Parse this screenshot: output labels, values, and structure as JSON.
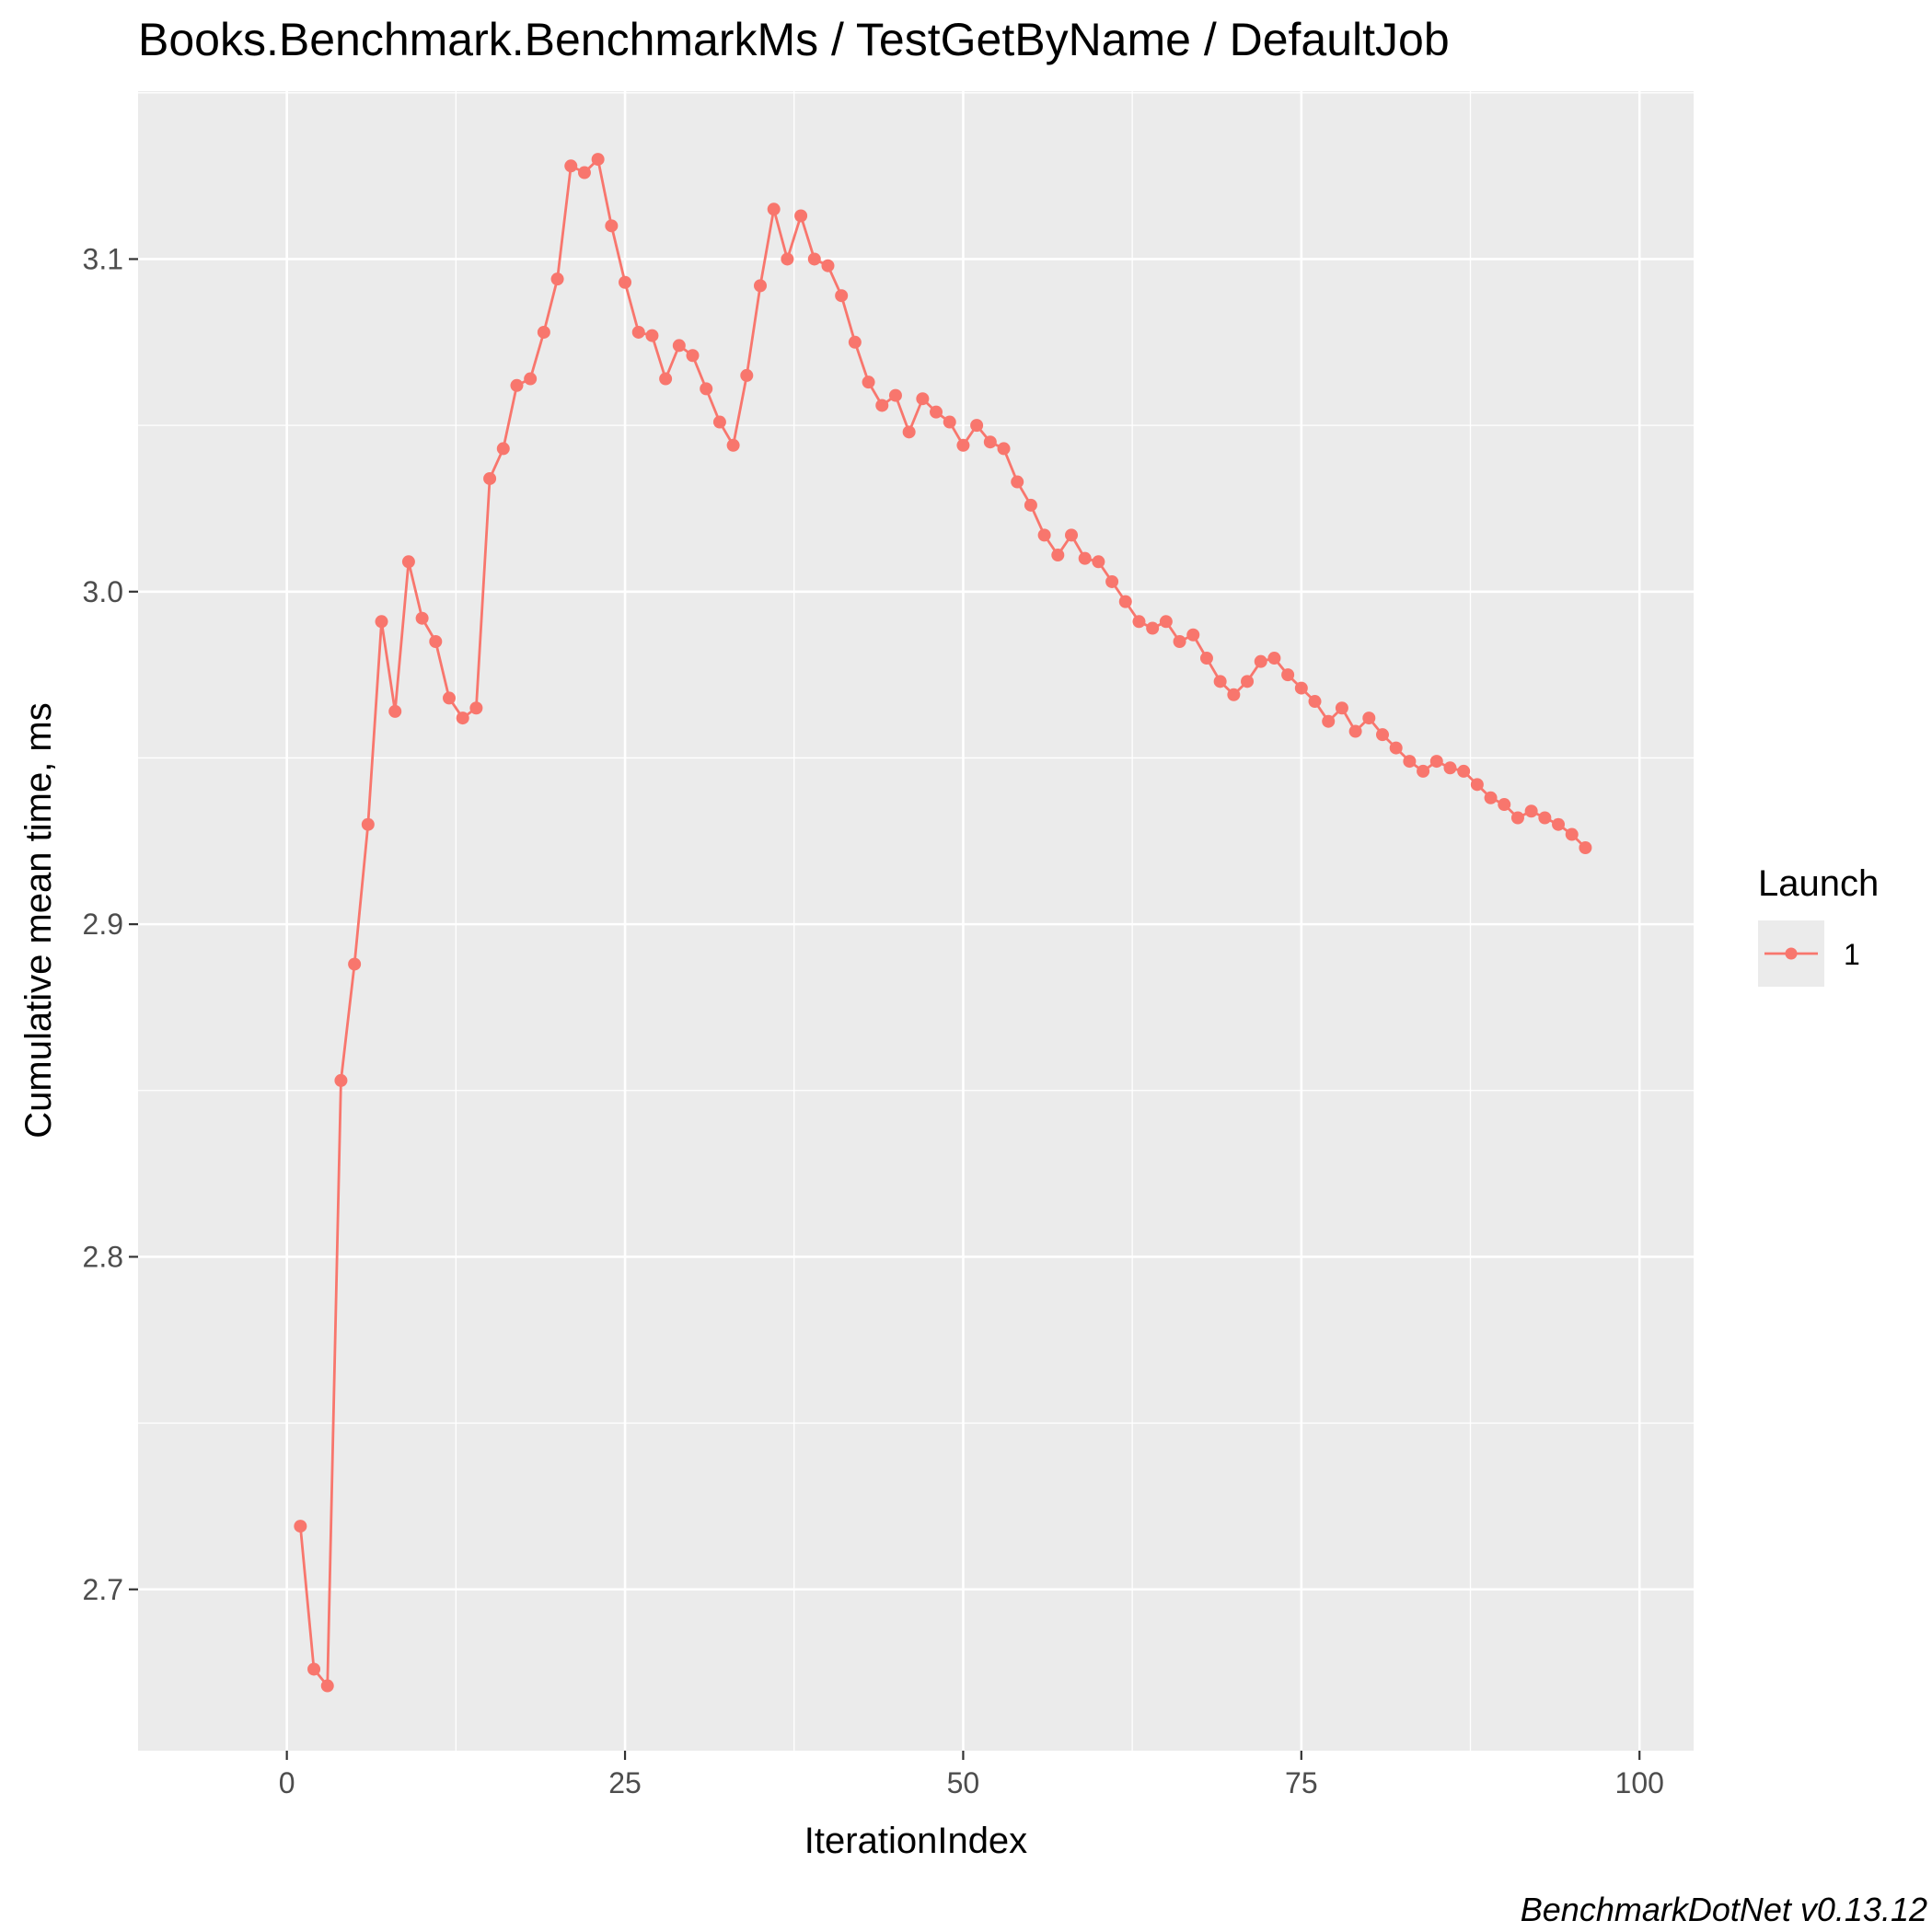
{
  "chart_data": {
    "type": "line",
    "title": "Books.Benchmark.BenchmarkMs / TestGetByName / DefaultJob",
    "xlabel": "IterationIndex",
    "ylabel": "Cumulative mean time, ms",
    "caption": "BenchmarkDotNet v0.13.12",
    "xlim": [
      -11,
      104
    ],
    "ylim": [
      2.6515,
      3.1505
    ],
    "x_ticks": [
      0,
      25,
      50,
      75,
      100
    ],
    "x_tick_labels": [
      "0",
      "25",
      "50",
      "75",
      "100"
    ],
    "y_ticks": [
      2.7,
      2.8,
      2.9,
      3.0,
      3.1
    ],
    "y_tick_labels": [
      "2.7",
      "2.8",
      "2.9",
      "3.0",
      "3.1"
    ],
    "grid": true,
    "legend": {
      "title": "Launch",
      "position": "right",
      "entries": [
        "1"
      ]
    },
    "series": [
      {
        "name": "1",
        "color": "#F8766D",
        "x": [
          1,
          2,
          3,
          4,
          5,
          6,
          7,
          8,
          9,
          10,
          11,
          12,
          13,
          14,
          15,
          16,
          17,
          18,
          19,
          20,
          21,
          22,
          23,
          24,
          25,
          26,
          27,
          28,
          29,
          30,
          31,
          32,
          33,
          34,
          35,
          36,
          37,
          38,
          39,
          40,
          41,
          42,
          43,
          44,
          45,
          46,
          47,
          48,
          49,
          50,
          51,
          52,
          53,
          54,
          55,
          56,
          57,
          58,
          59,
          60,
          61,
          62,
          63,
          64,
          65,
          66,
          67,
          68,
          69,
          70,
          71,
          72,
          73,
          74,
          75,
          76,
          77,
          78,
          79,
          80,
          81,
          82,
          83,
          84,
          85,
          86,
          87,
          88,
          89,
          90,
          91,
          92,
          93,
          94,
          95,
          96
        ],
        "values": [
          2.719,
          2.676,
          2.671,
          2.853,
          2.888,
          2.93,
          2.991,
          2.964,
          3.009,
          2.992,
          2.985,
          2.968,
          2.962,
          2.965,
          3.034,
          3.043,
          3.062,
          3.064,
          3.078,
          3.094,
          3.128,
          3.126,
          3.13,
          3.11,
          3.093,
          3.078,
          3.077,
          3.064,
          3.074,
          3.071,
          3.061,
          3.051,
          3.044,
          3.065,
          3.092,
          3.115,
          3.1,
          3.113,
          3.1,
          3.098,
          3.089,
          3.075,
          3.063,
          3.056,
          3.059,
          3.048,
          3.058,
          3.054,
          3.051,
          3.044,
          3.05,
          3.045,
          3.043,
          3.033,
          3.026,
          3.017,
          3.011,
          3.017,
          3.01,
          3.009,
          3.003,
          2.997,
          2.991,
          2.989,
          2.991,
          2.985,
          2.987,
          2.98,
          2.973,
          2.969,
          2.973,
          2.979,
          2.98,
          2.975,
          2.971,
          2.967,
          2.961,
          2.965,
          2.958,
          2.962,
          2.957,
          2.953,
          2.949,
          2.946,
          2.949,
          2.947,
          2.946,
          2.942,
          2.938,
          2.936,
          2.932,
          2.934,
          2.932,
          2.93,
          2.927,
          2.923
        ]
      }
    ]
  }
}
